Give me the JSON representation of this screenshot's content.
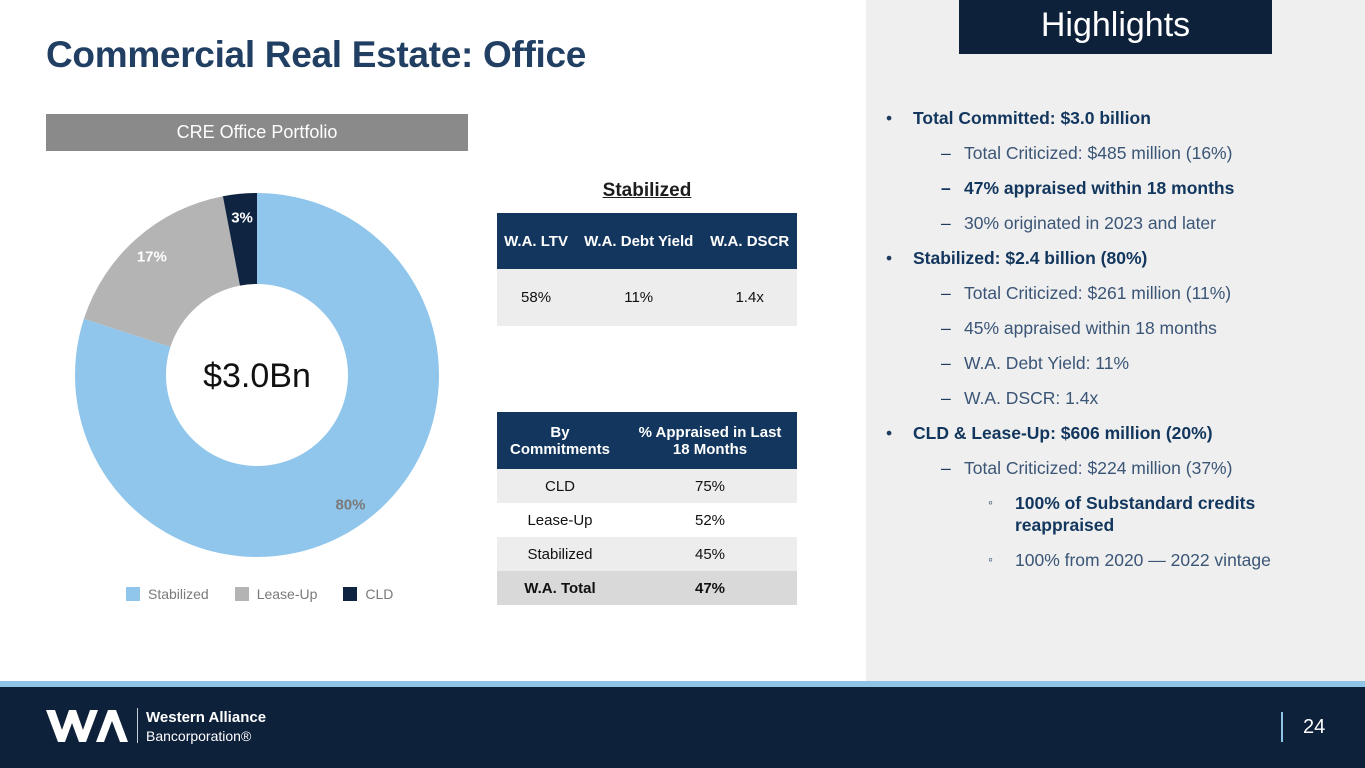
{
  "title": "Commercial Real Estate: Office",
  "portfolio_label": "CRE Office Portfolio",
  "chart_data": {
    "type": "pie",
    "categories": [
      "Stabilized",
      "Lease-Up",
      "CLD"
    ],
    "values": [
      80,
      17,
      3
    ],
    "data_labels": [
      "80%",
      "17%",
      "3%"
    ],
    "center_label": "$3.0Bn",
    "colors": [
      "#90c6eb",
      "#b4b4b4",
      "#0e2440"
    ],
    "legend_position": "bottom"
  },
  "stabilized_heading": "Stabilized",
  "stabilized_table": {
    "headers": [
      "W.A. LTV",
      "W.A. Debt Yield",
      "W.A. DSCR"
    ],
    "values": [
      "58%",
      "11%",
      "1.4x"
    ]
  },
  "commitments_table": {
    "headers": [
      "By Commitments",
      "% Appraised in Last 18 Months"
    ],
    "rows": [
      [
        "CLD",
        "75%"
      ],
      [
        "Lease-Up",
        "52%"
      ],
      [
        "Stabilized",
        "45%"
      ],
      [
        "W.A. Total",
        "47%"
      ]
    ]
  },
  "highlights": {
    "heading": "Highlights",
    "items": [
      {
        "level": 0,
        "mark": "•",
        "text": "Total Committed: $3.0 billion"
      },
      {
        "level": 1,
        "mark": "–",
        "text": "Total Criticized: $485 million (16%)"
      },
      {
        "level": 1,
        "mark": "–",
        "text": "47% appraised within 18 months",
        "bold": true
      },
      {
        "level": 1,
        "mark": "–",
        "text": "30% originated in 2023 and later"
      },
      {
        "level": 0,
        "mark": "•",
        "text": "Stabilized: $2.4 billion (80%)"
      },
      {
        "level": 1,
        "mark": "–",
        "text": "Total Criticized: $261 million (11%)"
      },
      {
        "level": 1,
        "mark": "–",
        "text": "45% appraised within 18 months"
      },
      {
        "level": 1,
        "mark": "–",
        "text": "W.A. Debt Yield: 11%"
      },
      {
        "level": 1,
        "mark": "–",
        "text": "W.A. DSCR: 1.4x"
      },
      {
        "level": 0,
        "mark": "•",
        "text": "CLD & Lease-Up: $606 million (20%)"
      },
      {
        "level": 1,
        "mark": "–",
        "text": "Total Criticized: $224 million (37%)"
      },
      {
        "level": 2,
        "mark": "◦",
        "text": "100% of Substandard credits reappraised",
        "bold": true
      },
      {
        "level": 2,
        "mark": "◦",
        "text": "100% from 2020 — 2022 vintage"
      }
    ]
  },
  "footer": {
    "brand_line1": "Western Alliance",
    "brand_line2": "Bancorporation®",
    "page_number": "24"
  }
}
